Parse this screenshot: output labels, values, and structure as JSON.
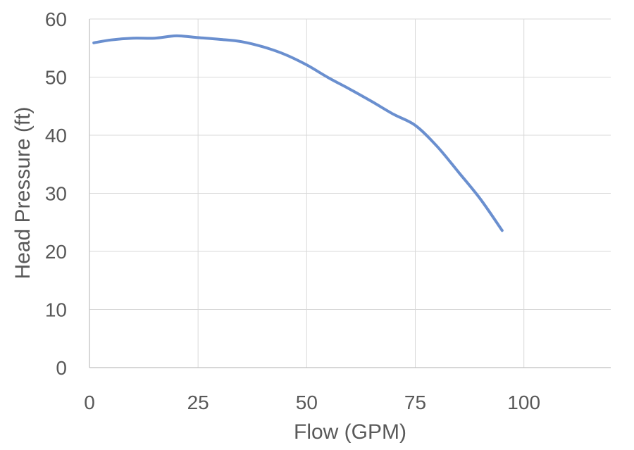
{
  "chart_data": {
    "type": "line",
    "title": "",
    "xlabel": "Flow (GPM)",
    "ylabel": "Head Pressure (ft)",
    "xlim": [
      0,
      120
    ],
    "ylim": [
      0,
      60
    ],
    "x_ticks": [
      0,
      25,
      50,
      75,
      100
    ],
    "y_ticks": [
      0,
      10,
      20,
      30,
      40,
      50,
      60
    ],
    "grid": true,
    "legend": "none",
    "series": [
      {
        "color": "#6a8fcf",
        "x": [
          1,
          5,
          10,
          15,
          20,
          25,
          30,
          35,
          40,
          45,
          50,
          55,
          60,
          65,
          70,
          75,
          80,
          85,
          90,
          95
        ],
        "y": [
          55.9,
          56.4,
          56.7,
          56.7,
          57.1,
          56.8,
          56.5,
          56.1,
          55.2,
          53.9,
          52.1,
          49.9,
          47.9,
          45.8,
          43.6,
          41.7,
          38.1,
          33.6,
          29.0,
          23.6
        ]
      }
    ]
  }
}
